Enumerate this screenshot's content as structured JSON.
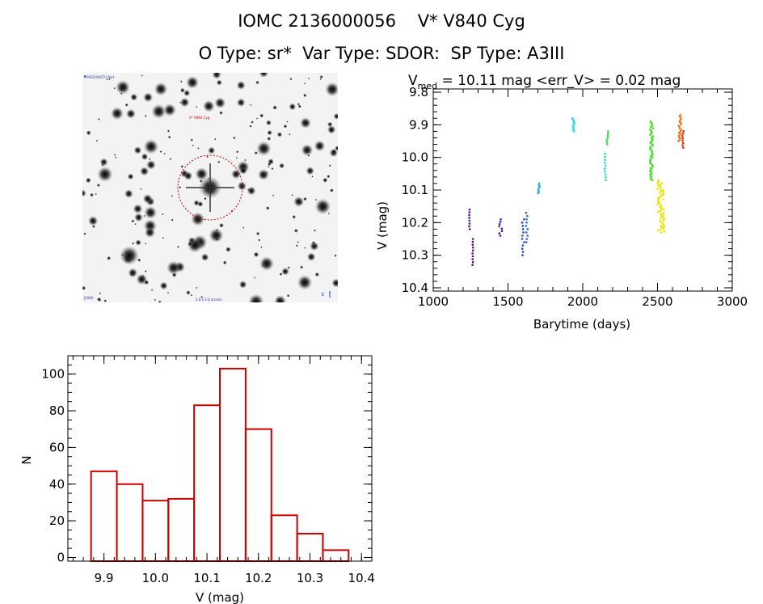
{
  "header": {
    "title_line1": "IOMC 2136000056    V* V840 Cyg",
    "title_line2": "O Type: sr*  Var Type: SDOR:  SP Type: A3III"
  },
  "colors": {
    "axis": "#000000",
    "histogram": "#cc0000",
    "aperture_circle": "#cc0000",
    "sky_background": "#f2f2f2",
    "star": "#1a1a1a"
  },
  "chart_data": [
    {
      "type": "scatter",
      "title": "V_med = 10.11 mag <err_V> = 0.02 mag",
      "title_main": "V",
      "title_sub": "med",
      "title_rest": " = 10.11 mag <err_V> = 0.02 mag",
      "xlabel": "Barytime (days)",
      "ylabel": "V (mag)",
      "xlim": [
        1000,
        3000
      ],
      "ylim": [
        10.41,
        9.79
      ],
      "y_inverted": true,
      "xticks": [
        "1000",
        "1500",
        "2000",
        "2500",
        "3000"
      ],
      "xtick_values": [
        1000,
        1500,
        2000,
        2500,
        3000
      ],
      "yticks": [
        "9.8",
        "9.9",
        "10.0",
        "10.1",
        "10.2",
        "10.3",
        "10.4"
      ],
      "ytick_values": [
        9.8,
        9.9,
        10.0,
        10.1,
        10.2,
        10.3,
        10.4
      ],
      "grid": false,
      "series": [
        {
          "color": "#5a0f7a",
          "x_range": [
            1240,
            1245
          ],
          "y_range": [
            10.16,
            10.22
          ],
          "count": 8
        },
        {
          "color": "#5a0f7a",
          "x_range": [
            1262,
            1268
          ],
          "y_range": [
            10.25,
            10.33
          ],
          "count": 10
        },
        {
          "color": "#4a1a9a",
          "x_range": [
            1440,
            1460
          ],
          "y_range": [
            10.19,
            10.24
          ],
          "count": 8
        },
        {
          "color": "#2244cc",
          "x_range": [
            1592,
            1608
          ],
          "y_range": [
            10.19,
            10.3
          ],
          "count": 12
        },
        {
          "color": "#2266dd",
          "x_range": [
            1620,
            1632
          ],
          "y_range": [
            10.17,
            10.26
          ],
          "count": 10
        },
        {
          "color": "#22b0dd",
          "x_range": [
            1700,
            1715
          ],
          "y_range": [
            10.08,
            10.11
          ],
          "count": 8
        },
        {
          "color": "#22dddd",
          "x_range": [
            1930,
            1945
          ],
          "y_range": [
            9.88,
            9.92
          ],
          "count": 10
        },
        {
          "color": "#22ddaa",
          "x_range": [
            2145,
            2155
          ],
          "y_range": [
            9.99,
            10.07
          ],
          "count": 10
        },
        {
          "color": "#44dd55",
          "x_range": [
            2160,
            2170
          ],
          "y_range": [
            9.92,
            9.96
          ],
          "count": 8
        },
        {
          "color": "#44dd22",
          "x_range": [
            2450,
            2470
          ],
          "y_range": [
            9.89,
            10.07
          ],
          "count": 45
        },
        {
          "color": "#e6e600",
          "x_range": [
            2500,
            2545
          ],
          "y_range": [
            10.07,
            10.23
          ],
          "count": 55
        },
        {
          "color": "#ee7711",
          "x_range": [
            2640,
            2660
          ],
          "y_range": [
            9.87,
            9.95
          ],
          "count": 20
        },
        {
          "color": "#dd2200",
          "x_range": [
            2665,
            2675
          ],
          "y_range": [
            9.92,
            9.97
          ],
          "count": 8
        }
      ]
    },
    {
      "type": "bar",
      "subtype": "histogram",
      "xlabel": "V (mag)",
      "ylabel": "N",
      "xlim": [
        9.83,
        10.42
      ],
      "ylim": [
        -2,
        110
      ],
      "xticks": [
        "9.9",
        "10.0",
        "10.1",
        "10.2",
        "10.3",
        "10.4"
      ],
      "xtick_values": [
        9.9,
        10.0,
        10.1,
        10.2,
        10.3,
        10.4
      ],
      "yticks": [
        "0",
        "20",
        "40",
        "60",
        "80",
        "100"
      ],
      "ytick_values": [
        0,
        20,
        40,
        60,
        80,
        100
      ],
      "bins": [
        {
          "x0": 9.875,
          "x1": 9.925,
          "count": 47
        },
        {
          "x0": 9.925,
          "x1": 9.975,
          "count": 40
        },
        {
          "x0": 9.975,
          "x1": 10.025,
          "count": 31
        },
        {
          "x0": 10.025,
          "x1": 10.075,
          "count": 32
        },
        {
          "x0": 10.075,
          "x1": 10.125,
          "count": 83
        },
        {
          "x0": 10.125,
          "x1": 10.175,
          "count": 103
        },
        {
          "x0": 10.175,
          "x1": 10.225,
          "count": 70
        },
        {
          "x0": 10.225,
          "x1": 10.275,
          "count": 23
        },
        {
          "x0": 10.275,
          "x1": 10.325,
          "count": 13
        },
        {
          "x0": 10.325,
          "x1": 10.375,
          "count": 4
        }
      ]
    }
  ],
  "sky_image": {
    "label_top_left": "POSS2/UKSTU Red",
    "label_target": "V* V840 Cyg",
    "label_bottom_center": "2.6 x 2.6 arcmin",
    "label_bottom_left": "J2000",
    "label_bottom_right": "E"
  }
}
